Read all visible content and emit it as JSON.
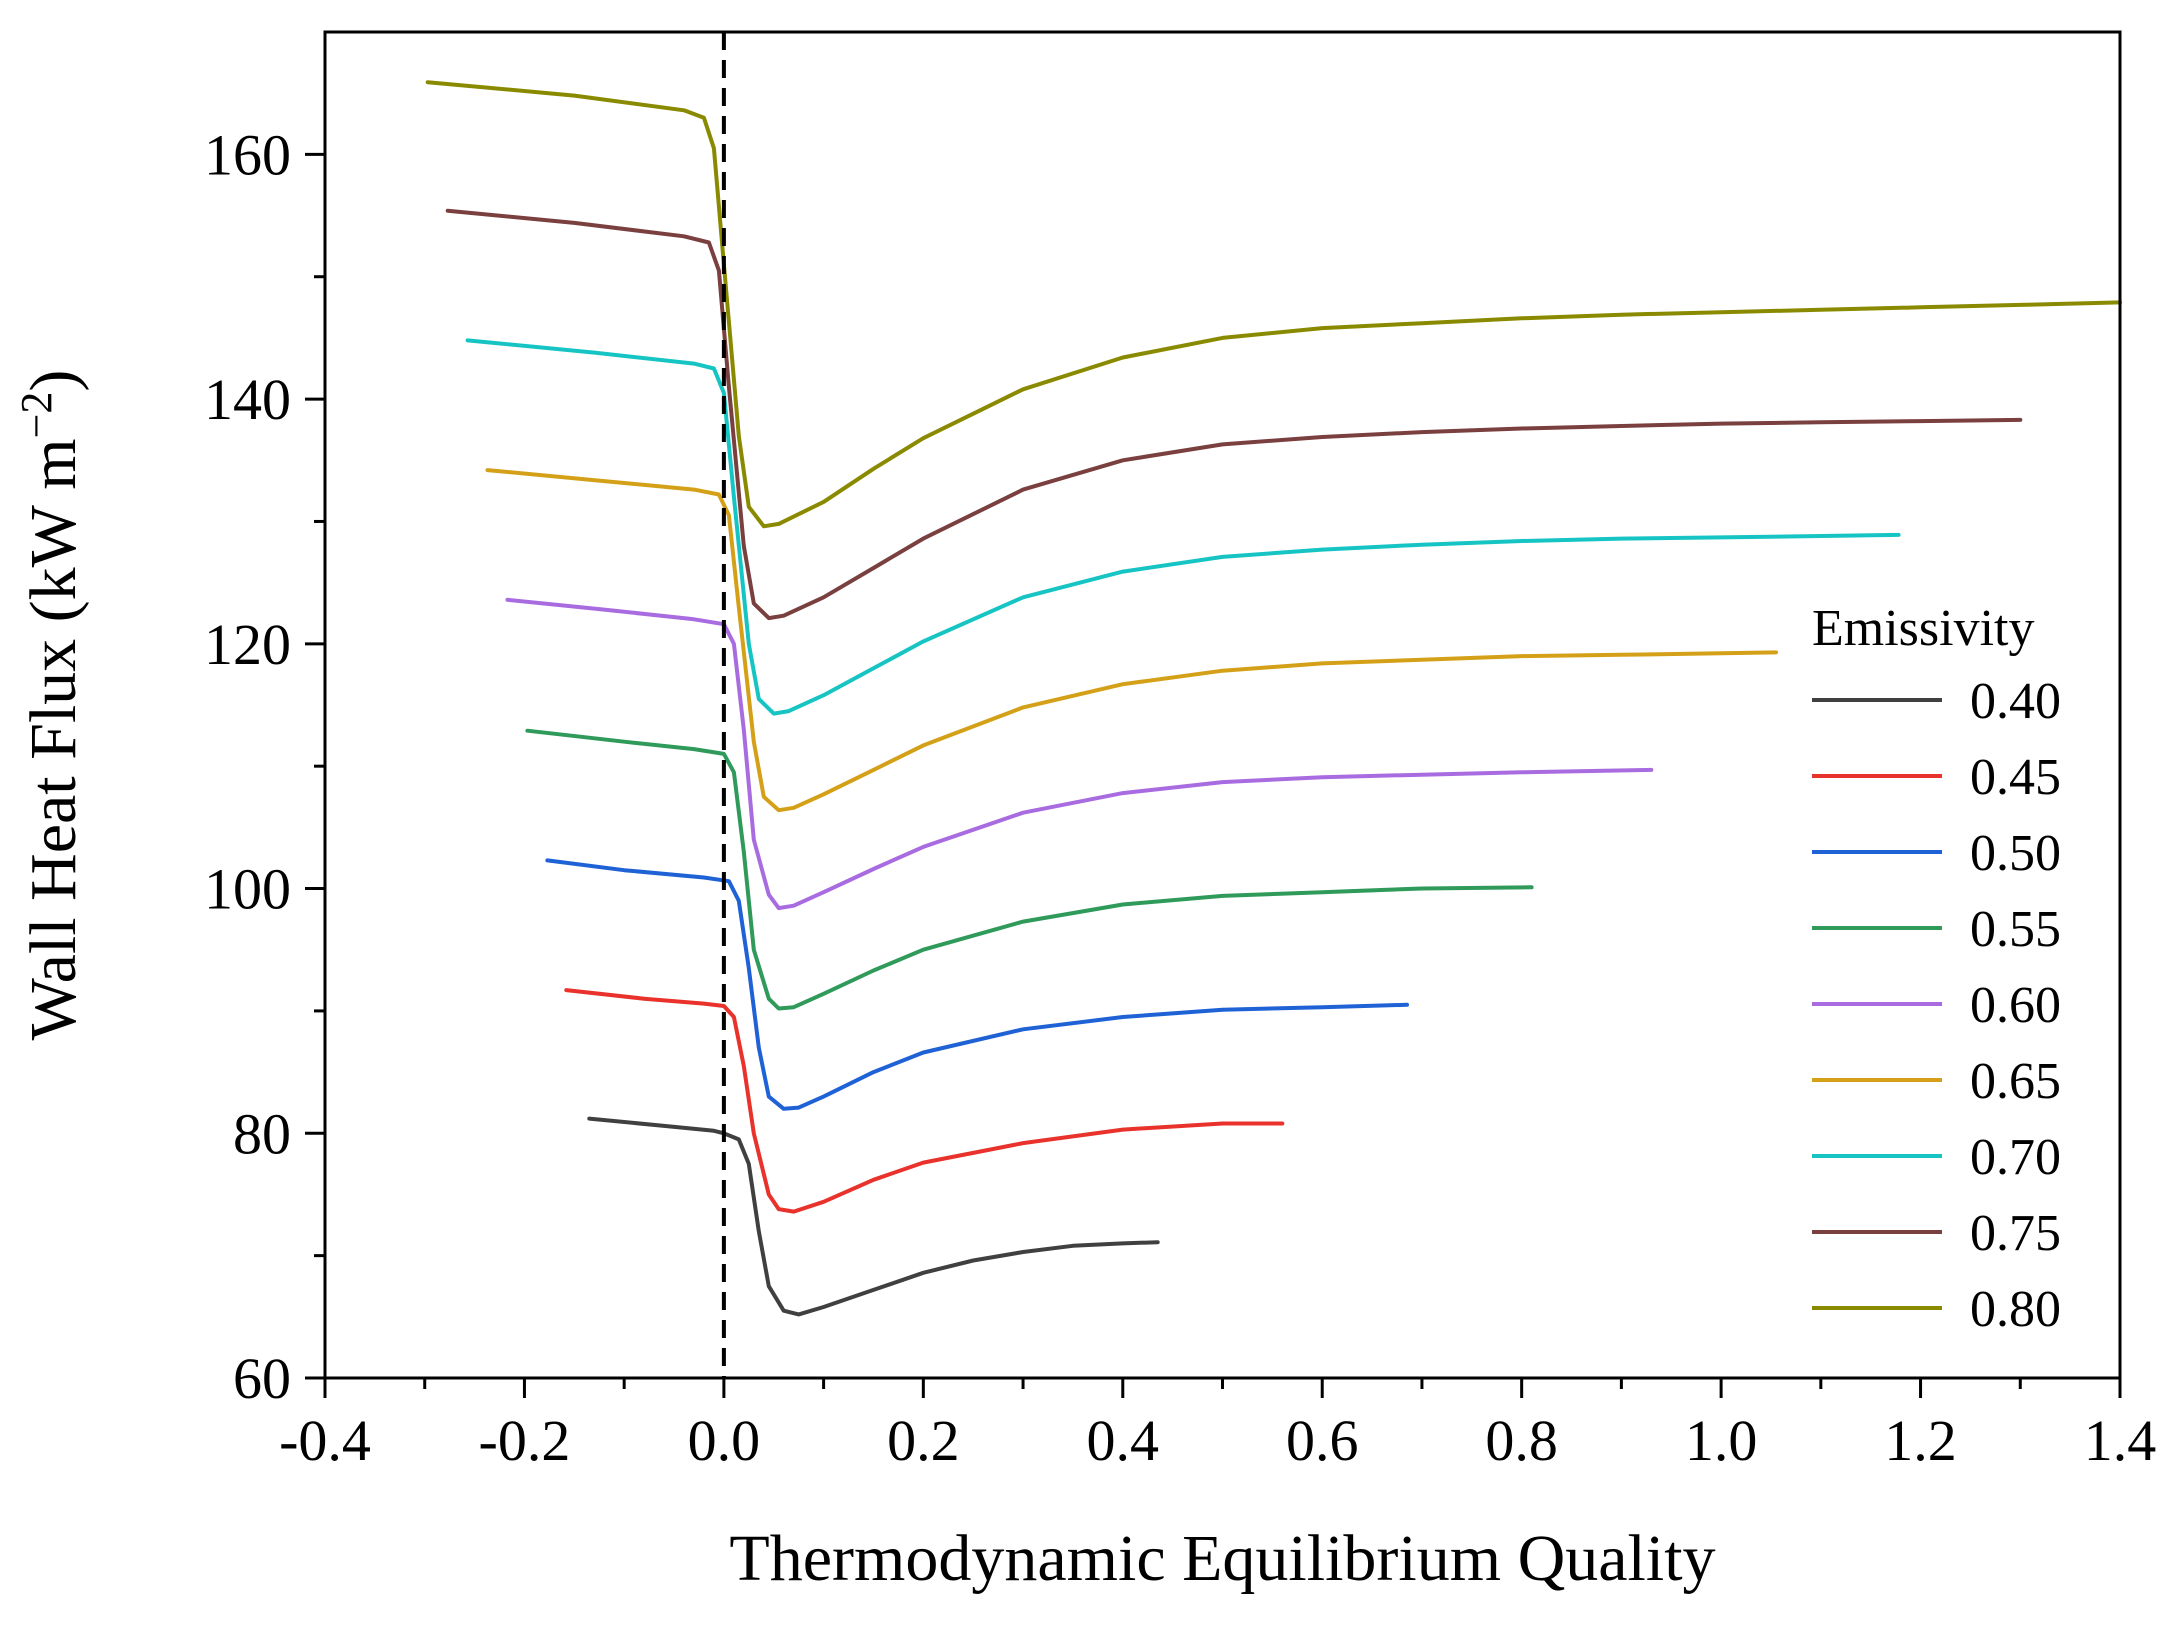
{
  "chart_data": {
    "type": "line",
    "xlabel": "Thermodynamic Equilibrium Quality",
    "ylabel": "Wall Heat Flux (kW m",
    "ylabel_sup": "−2",
    "ylabel_close": ")",
    "xlim": [
      -0.4,
      1.4
    ],
    "ylim": [
      60,
      170
    ],
    "xticks": [
      -0.4,
      -0.2,
      0.0,
      0.2,
      0.4,
      0.6,
      0.8,
      1.0,
      1.2,
      1.4
    ],
    "xtick_labels": [
      "-0.4",
      "-0.2",
      "0.0",
      "0.2",
      "0.4",
      "0.6",
      "0.8",
      "1.0",
      "1.2",
      "1.4"
    ],
    "yticks": [
      60,
      80,
      100,
      120,
      140,
      160
    ],
    "ytick_labels": [
      "60",
      "80",
      "100",
      "120",
      "140",
      "160"
    ],
    "vline_x": 0.0,
    "legend_title": "Emissivity",
    "legend_position": "right",
    "series": [
      {
        "name": "0.40",
        "color": "#404040",
        "x": [
          -0.135,
          -0.06,
          -0.01,
          0.0,
          0.015,
          0.025,
          0.035,
          0.045,
          0.06,
          0.075,
          0.1,
          0.15,
          0.2,
          0.25,
          0.3,
          0.35,
          0.4,
          0.435
        ],
        "y": [
          81.2,
          80.6,
          80.2,
          80.0,
          79.5,
          77.5,
          72.0,
          67.5,
          65.5,
          65.2,
          65.8,
          67.2,
          68.6,
          69.6,
          70.3,
          70.8,
          71.0,
          71.1
        ]
      },
      {
        "name": "0.45",
        "color": "#e8322b",
        "x": [
          -0.158,
          -0.08,
          -0.02,
          0.0,
          0.01,
          0.02,
          0.03,
          0.045,
          0.055,
          0.07,
          0.1,
          0.15,
          0.2,
          0.3,
          0.4,
          0.5,
          0.56
        ],
        "y": [
          91.7,
          91.0,
          90.6,
          90.4,
          89.5,
          85.5,
          80.0,
          75.0,
          73.8,
          73.6,
          74.4,
          76.2,
          77.6,
          79.2,
          80.3,
          80.8,
          80.8
        ]
      },
      {
        "name": "0.50",
        "color": "#1f62d6",
        "x": [
          -0.177,
          -0.1,
          -0.02,
          0.005,
          0.015,
          0.025,
          0.035,
          0.045,
          0.06,
          0.075,
          0.1,
          0.15,
          0.2,
          0.3,
          0.4,
          0.5,
          0.6,
          0.685
        ],
        "y": [
          102.3,
          101.5,
          100.9,
          100.6,
          99.0,
          93.5,
          87.0,
          83.0,
          82.0,
          82.1,
          83.0,
          85.0,
          86.6,
          88.5,
          89.5,
          90.1,
          90.3,
          90.5
        ]
      },
      {
        "name": "0.55",
        "color": "#2f9a5a",
        "x": [
          -0.197,
          -0.1,
          -0.03,
          0.0,
          0.01,
          0.02,
          0.03,
          0.045,
          0.055,
          0.07,
          0.1,
          0.15,
          0.2,
          0.3,
          0.4,
          0.5,
          0.6,
          0.7,
          0.81
        ],
        "y": [
          112.9,
          112.0,
          111.4,
          111.0,
          109.5,
          103.0,
          95.0,
          91.0,
          90.2,
          90.3,
          91.4,
          93.3,
          95.0,
          97.3,
          98.7,
          99.4,
          99.7,
          100.0,
          100.1
        ]
      },
      {
        "name": "0.60",
        "color": "#a86ce0",
        "x": [
          -0.217,
          -0.12,
          -0.03,
          0.0,
          0.01,
          0.02,
          0.03,
          0.045,
          0.055,
          0.07,
          0.1,
          0.15,
          0.2,
          0.3,
          0.4,
          0.5,
          0.6,
          0.7,
          0.8,
          0.93
        ],
        "y": [
          123.6,
          122.8,
          122.0,
          121.6,
          120.0,
          113.0,
          104.0,
          99.5,
          98.4,
          98.6,
          99.7,
          101.6,
          103.4,
          106.2,
          107.8,
          108.7,
          109.1,
          109.3,
          109.5,
          109.7
        ]
      },
      {
        "name": "0.65",
        "color": "#d4a017",
        "x": [
          -0.237,
          -0.12,
          -0.03,
          -0.005,
          0.005,
          0.015,
          0.03,
          0.04,
          0.055,
          0.07,
          0.1,
          0.15,
          0.2,
          0.3,
          0.4,
          0.5,
          0.6,
          0.7,
          0.8,
          0.9,
          1.055
        ],
        "y": [
          134.2,
          133.3,
          132.6,
          132.2,
          130.5,
          123.0,
          112.0,
          107.5,
          106.4,
          106.6,
          107.7,
          109.7,
          111.7,
          114.8,
          116.7,
          117.8,
          118.4,
          118.7,
          119.0,
          119.1,
          119.3
        ]
      },
      {
        "name": "0.70",
        "color": "#17c4c4",
        "x": [
          -0.257,
          -0.13,
          -0.03,
          -0.01,
          0.0,
          0.01,
          0.025,
          0.035,
          0.05,
          0.065,
          0.1,
          0.15,
          0.2,
          0.3,
          0.4,
          0.5,
          0.6,
          0.7,
          0.8,
          0.9,
          1.0,
          1.178
        ],
        "y": [
          144.8,
          143.8,
          142.9,
          142.5,
          140.5,
          132.0,
          120.0,
          115.5,
          114.3,
          114.5,
          115.8,
          118.0,
          120.2,
          123.8,
          125.9,
          127.1,
          127.7,
          128.1,
          128.4,
          128.6,
          128.7,
          128.9
        ]
      },
      {
        "name": "0.75",
        "color": "#7a3f3f",
        "x": [
          -0.277,
          -0.15,
          -0.04,
          -0.015,
          -0.005,
          0.005,
          0.02,
          0.03,
          0.045,
          0.06,
          0.1,
          0.15,
          0.2,
          0.3,
          0.4,
          0.5,
          0.6,
          0.7,
          0.8,
          0.9,
          1.0,
          1.1,
          1.2,
          1.3
        ],
        "y": [
          155.4,
          154.4,
          153.3,
          152.8,
          150.5,
          141.0,
          128.0,
          123.3,
          122.1,
          122.3,
          123.8,
          126.2,
          128.6,
          132.6,
          135.0,
          136.3,
          136.9,
          137.3,
          137.6,
          137.8,
          138.0,
          138.1,
          138.2,
          138.3
        ]
      },
      {
        "name": "0.80",
        "color": "#8a8a00",
        "x": [
          -0.297,
          -0.15,
          -0.04,
          -0.02,
          -0.01,
          0.0,
          0.015,
          0.025,
          0.04,
          0.055,
          0.1,
          0.15,
          0.2,
          0.3,
          0.4,
          0.5,
          0.6,
          0.7,
          0.8,
          0.9,
          1.0,
          1.1,
          1.2,
          1.3,
          1.4
        ],
        "y": [
          165.9,
          164.8,
          163.6,
          163.0,
          160.5,
          151.0,
          137.0,
          131.2,
          129.6,
          129.8,
          131.6,
          134.3,
          136.8,
          140.8,
          143.4,
          145.0,
          145.8,
          146.2,
          146.6,
          146.9,
          147.1,
          147.3,
          147.5,
          147.7,
          147.9
        ]
      }
    ]
  }
}
